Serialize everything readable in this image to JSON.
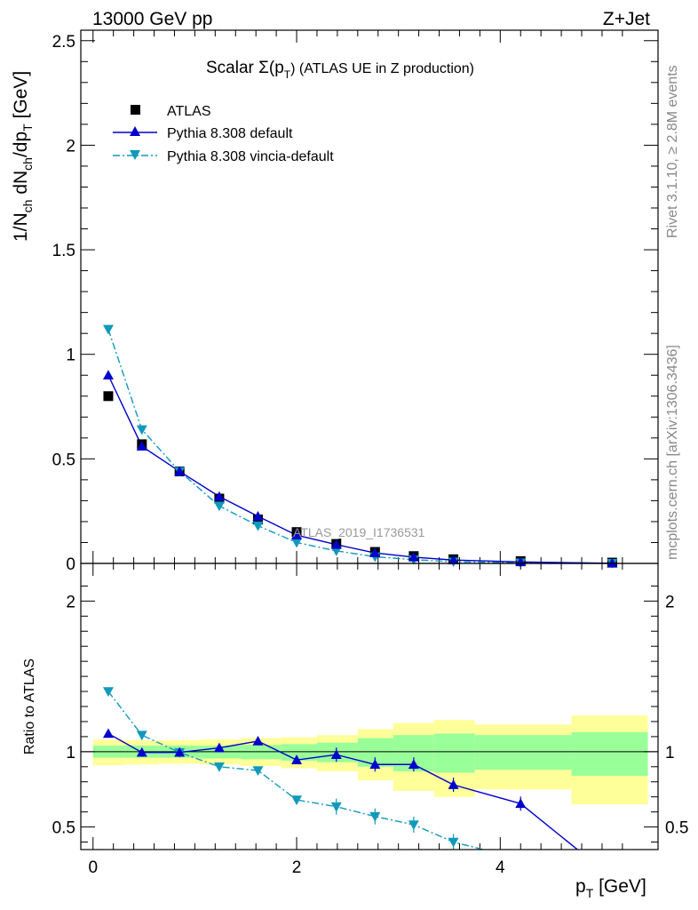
{
  "header": {
    "left": "13000 GeV pp",
    "right": "Z+Jet"
  },
  "side_labels": {
    "rivet": "Rivet 3.1.10, ≥ 2.8M events",
    "mcplots": "mcplots.cern.ch [arXiv:1306.3436]"
  },
  "chart_data": [
    {
      "type": "scatter",
      "panel": "main",
      "title_prefix": "Scalar Σ(p",
      "title_sub": "T",
      "title_suffix": ") (ATLAS UE in Z production)",
      "watermark": "ATLAS_2019_I1736531",
      "ylabel_parts": [
        "1/N",
        "ch",
        " dN",
        "ch",
        "/dp",
        "T",
        " [GeV]"
      ],
      "xlim": [
        -0.12,
        5.55
      ],
      "ylim": [
        0,
        2.55
      ],
      "yticks": [
        0,
        0.5,
        1,
        1.5,
        2,
        2.5
      ],
      "yticklabels": [
        "0",
        "0.5",
        "1",
        "1.5",
        "2",
        "2.5"
      ],
      "x": [
        0.15,
        0.48,
        0.85,
        1.24,
        1.62,
        2.0,
        2.39,
        2.77,
        3.15,
        3.54,
        4.2,
        5.1
      ],
      "series": [
        {
          "name": "ATLAS",
          "color": "#000000",
          "marker": "square",
          "values": [
            0.8,
            0.57,
            0.44,
            0.31,
            0.21,
            0.15,
            0.095,
            0.055,
            0.035,
            0.02,
            0.011,
            0.004
          ]
        },
        {
          "name": "Pythia 8.308 default",
          "color": "#0000cc",
          "marker": "triangle-up",
          "line": "solid",
          "values": [
            0.9,
            0.56,
            0.44,
            0.32,
            0.225,
            0.135,
            0.09,
            0.05,
            0.03,
            0.016,
            0.007,
            0.001
          ]
        },
        {
          "name": "Pythia 8.308 vincia-default",
          "color": "#1199bb",
          "marker": "triangle-down",
          "line": "dashdot",
          "values": [
            1.12,
            0.64,
            0.44,
            0.275,
            0.18,
            0.1,
            0.06,
            0.032,
            0.018,
            0.008,
            0.003,
            0.001
          ]
        }
      ]
    },
    {
      "type": "line",
      "panel": "ratio",
      "ylabel": "Ratio to ATLAS",
      "xlabel_main": "p",
      "xlabel_sub": "T",
      "xlabel_unit": " [GeV]",
      "xlim": [
        -0.12,
        5.55
      ],
      "ylim": [
        0.35,
        2.25
      ],
      "xticks": [
        0,
        2,
        4
      ],
      "xticklabels": [
        "0",
        "2",
        "4"
      ],
      "yticks": [
        0.5,
        1,
        2
      ],
      "yticklabels": [
        "0.5",
        "1",
        "2"
      ],
      "bands": {
        "edges": [
          0.0,
          0.3,
          0.65,
          1.05,
          1.45,
          1.85,
          2.2,
          2.6,
          2.95,
          3.35,
          3.75,
          4.7,
          5.45
        ],
        "yellow_low": [
          0.91,
          0.915,
          0.92,
          0.915,
          0.905,
          0.89,
          0.87,
          0.81,
          0.74,
          0.7,
          0.75,
          0.65
        ],
        "yellow_high": [
          1.08,
          1.075,
          1.075,
          1.08,
          1.09,
          1.095,
          1.11,
          1.15,
          1.19,
          1.21,
          1.18,
          1.24
        ],
        "green_low": [
          0.96,
          0.96,
          0.96,
          0.955,
          0.95,
          0.94,
          0.93,
          0.9,
          0.87,
          0.86,
          0.88,
          0.84
        ],
        "green_high": [
          1.04,
          1.04,
          1.04,
          1.04,
          1.045,
          1.05,
          1.06,
          1.09,
          1.11,
          1.12,
          1.11,
          1.13
        ]
      },
      "series": [
        {
          "name": "Pythia 8.308 default",
          "color": "#0000cc",
          "marker": "triangle-up",
          "line": "solid",
          "x": [
            0.15,
            0.48,
            0.85,
            1.24,
            1.62,
            2.0,
            2.39,
            2.77,
            3.15,
            3.54,
            4.2,
            4.85
          ],
          "values": [
            1.12,
            0.995,
            0.995,
            1.025,
            1.07,
            0.945,
            0.98,
            0.915,
            0.915,
            0.78,
            0.655,
            0.3
          ],
          "marker_count": 11
        },
        {
          "name": "Pythia 8.308 vincia-default",
          "color": "#1199bb",
          "marker": "triangle-down",
          "line": "dashdot",
          "x": [
            0.15,
            0.48,
            0.85,
            1.24,
            1.62,
            2.0,
            2.39,
            2.77,
            3.15,
            3.54,
            3.95
          ],
          "values": [
            1.4,
            1.11,
            0.995,
            0.9,
            0.875,
            0.68,
            0.635,
            0.57,
            0.515,
            0.4,
            0.33
          ],
          "marker_count": 10
        }
      ]
    }
  ]
}
